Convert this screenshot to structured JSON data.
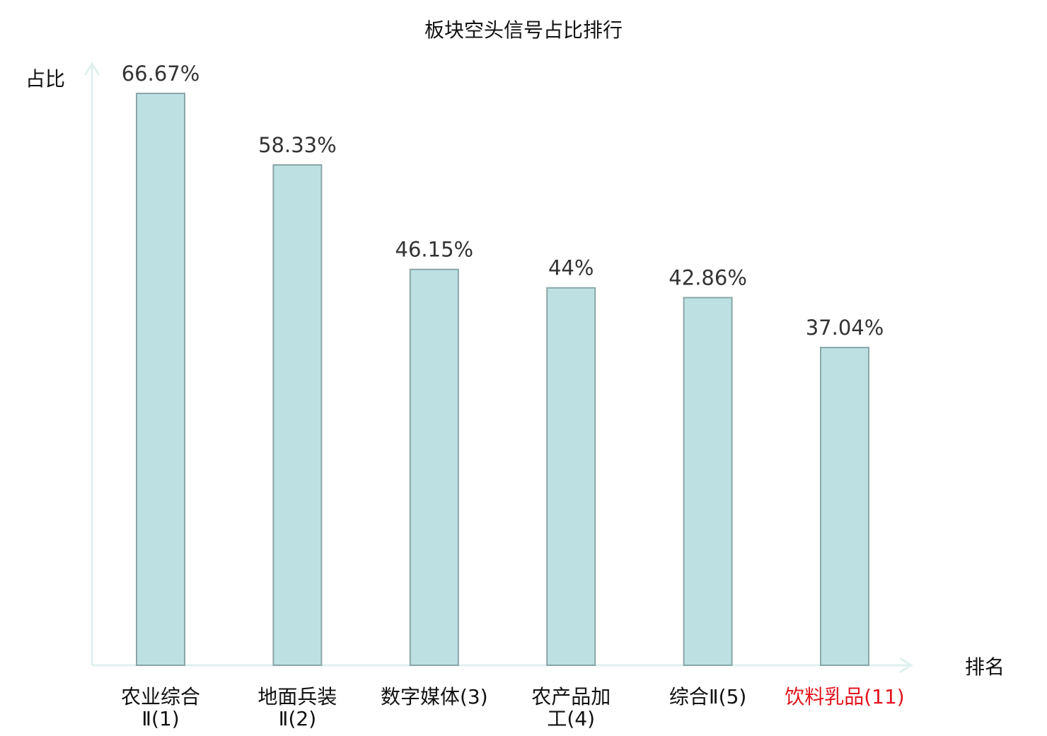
{
  "chart_data": {
    "type": "bar",
    "title": "板块空头信号占比排行",
    "ylabel": "占比",
    "xlabel": "排名",
    "ylim": [
      0,
      70
    ],
    "categories": [
      [
        "农业综合",
        "Ⅱ(1)"
      ],
      [
        "地面兵装",
        "Ⅱ(2)"
      ],
      [
        "数字媒体(3)"
      ],
      [
        "农产品加",
        "工(4)"
      ],
      [
        "综合Ⅱ(5)"
      ],
      [
        "饮料乳品(11)"
      ]
    ],
    "values": [
      66.67,
      58.33,
      46.15,
      44,
      42.86,
      37.04
    ],
    "value_labels": [
      "66.67%",
      "58.33%",
      "46.15%",
      "44%",
      "42.86%",
      "37.04%"
    ],
    "highlight_index": 5,
    "colors": {
      "bar_fill": "#bde1e3",
      "bar_stroke": "#8aa6a8",
      "axis": "#dff0ee",
      "label": "#111111",
      "highlight": "#e0141e"
    }
  }
}
